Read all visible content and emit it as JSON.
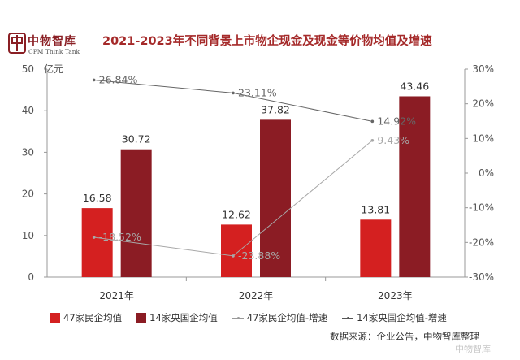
{
  "logo": {
    "name_cn": "中物智库",
    "name_en": "CPM Think Tank"
  },
  "chart_data": {
    "type": "bar",
    "title": "2021-2023年不同背景上市物企现金及现金等价物均值及增速",
    "categories": [
      "2021年",
      "2022年",
      "2023年"
    ],
    "ylabel": "亿元",
    "ylim": [
      0,
      50
    ],
    "yticks": [
      0,
      10,
      20,
      30,
      40,
      50
    ],
    "y2lim": [
      -30,
      30
    ],
    "y2ticks": [
      "-30%",
      "-20%",
      "-10%",
      "0%",
      "10%",
      "20%",
      "30%"
    ],
    "series": [
      {
        "name": "47家民企均值",
        "type": "bar",
        "axis": "left",
        "color": "#d42020",
        "values": [
          16.58,
          12.62,
          13.81
        ],
        "labels": [
          "16.58",
          "12.62",
          "13.81"
        ]
      },
      {
        "name": "14家央国企均值",
        "type": "bar",
        "axis": "left",
        "color": "#8b1c24",
        "values": [
          30.72,
          37.82,
          43.46
        ],
        "labels": [
          "30.72",
          "37.82",
          "43.46"
        ]
      },
      {
        "name": "47家民企均值-增速",
        "type": "line",
        "axis": "right",
        "color": "#a8a8a8",
        "values": [
          -18.52,
          -23.88,
          9.43
        ],
        "labels": [
          "-18.52%",
          "-23.88%",
          "9.43%"
        ]
      },
      {
        "name": "14家央国企均值-增速",
        "type": "line",
        "axis": "right",
        "color": "#666666",
        "values": [
          26.84,
          23.11,
          14.92
        ],
        "labels": [
          "26.84%",
          "23.11%",
          "14.92%"
        ]
      }
    ],
    "legend_position": "bottom",
    "grid": false
  },
  "footer": {
    "source": "数据来源：企业公告，中物智库整理",
    "watermark": "中物智库"
  }
}
